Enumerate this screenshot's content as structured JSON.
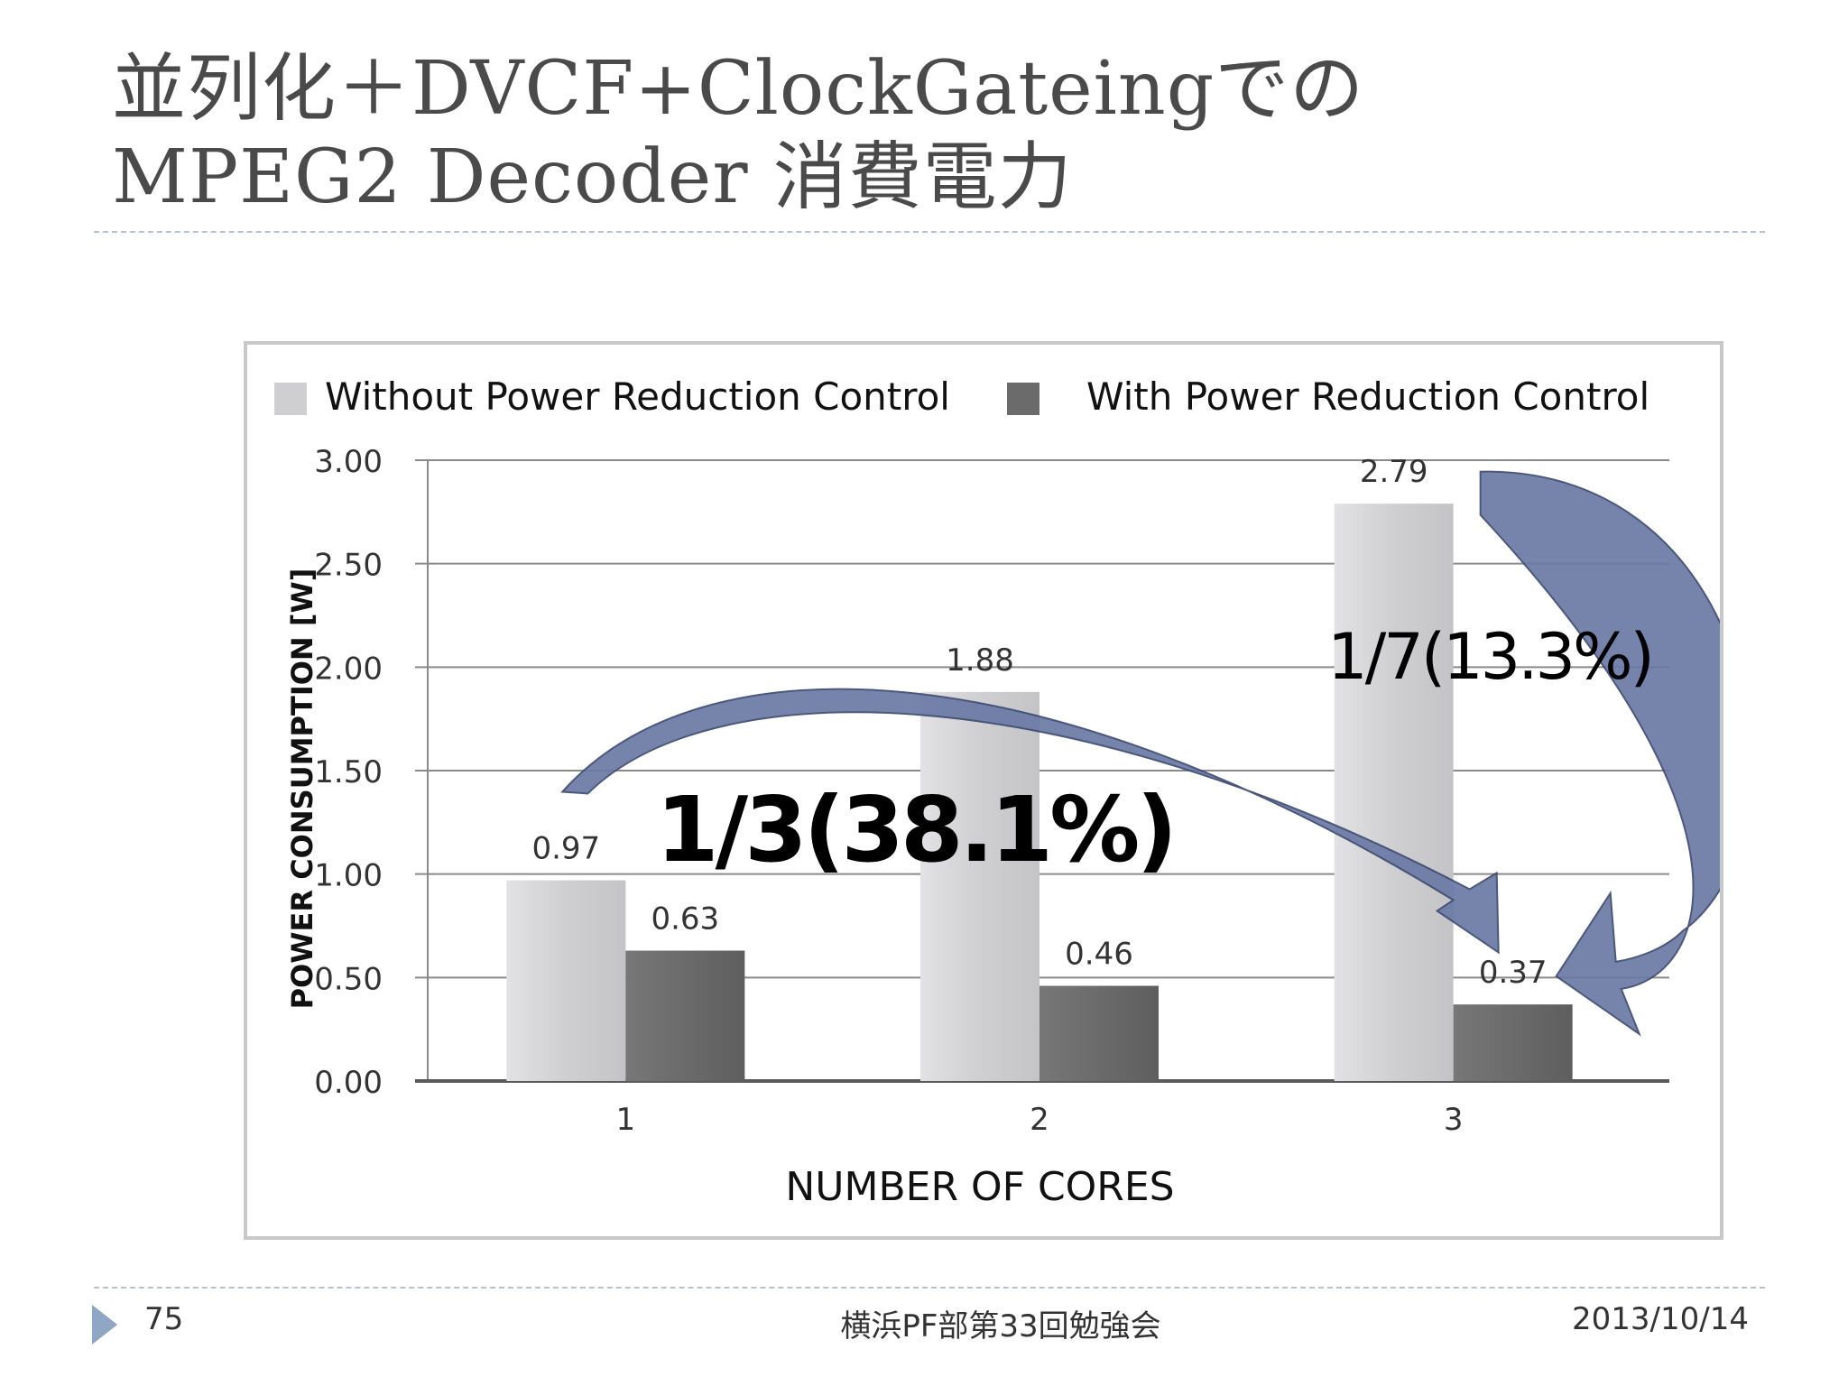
{
  "slide": {
    "title_line1": "並列化＋DVCF+ClockGateingでの",
    "title_line2": "MPEG2 Decoder 消費電力"
  },
  "footer": {
    "page_number": "75",
    "event": "横浜PF部第33回勉強会",
    "date": "2013/10/14"
  },
  "colors": {
    "without": "#cfcfd2",
    "with": "#6b6b6b",
    "arrow": "#6b7aa6",
    "arrow_stroke": "#3c4a70",
    "accent_marker": "#8fa6c4"
  },
  "chart_data": {
    "type": "bar",
    "categories": [
      "1",
      "2",
      "3"
    ],
    "series": [
      {
        "name": "Without Power Reduction Control",
        "values": [
          0.97,
          1.88,
          2.79
        ]
      },
      {
        "name": "With Power Reduction Control",
        "values": [
          0.63,
          0.46,
          0.37
        ]
      }
    ],
    "value_labels": {
      "without": [
        "0.97",
        "1.88",
        "2.79"
      ],
      "with": [
        "0.63",
        "0.46",
        "0.37"
      ]
    },
    "xlabel": "NUMBER OF CORES",
    "ylabel": "POWER CONSUMPTION [W]",
    "ylim": [
      0,
      3
    ],
    "yticks": [
      "0.00",
      "0.50",
      "1.00",
      "1.50",
      "2.00",
      "2.50",
      "3.00"
    ],
    "grid": true,
    "legend_position": "top",
    "annotations": [
      {
        "text": "1/3(38.1%)",
        "from_category": "1",
        "to_category": "3"
      },
      {
        "text": "1/7(13.3%)",
        "from_category": "3",
        "to_category": "3"
      }
    ]
  }
}
